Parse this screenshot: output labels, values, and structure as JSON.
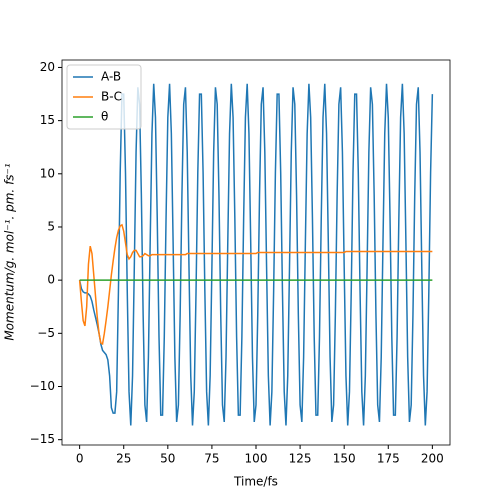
{
  "chart_data": {
    "type": "line",
    "xlabel": "Time/fs",
    "ylabel": "Momentum/g. mol⁻¹. pm. fs⁻¹",
    "xlim": [
      -10,
      210
    ],
    "ylim": [
      -15.5,
      20.7
    ],
    "xticks": [
      0,
      25,
      50,
      75,
      100,
      125,
      150,
      175,
      200
    ],
    "yticks": [
      {
        "value": -15,
        "label": "−15"
      },
      {
        "value": -10,
        "label": "−10"
      },
      {
        "value": -5,
        "label": "−5"
      },
      0,
      5,
      10,
      15,
      20
    ],
    "legend": "upper left",
    "x": [
      0,
      1,
      2,
      3,
      4,
      5,
      6,
      7,
      8,
      9,
      10,
      11,
      12,
      13,
      14,
      15,
      16,
      17,
      18,
      19,
      20,
      21,
      22,
      23,
      24,
      25,
      26,
      27,
      28,
      29,
      30,
      31,
      32,
      33,
      34,
      35,
      36,
      37,
      38,
      39,
      40,
      41,
      42,
      43,
      44,
      45,
      46,
      47,
      48,
      49,
      50,
      51,
      52,
      53,
      54,
      55,
      56,
      57,
      58,
      59,
      60,
      61,
      62,
      63,
      64,
      65,
      66,
      67,
      68,
      69,
      70,
      71,
      72,
      73,
      74,
      75,
      76,
      77,
      78,
      79,
      80,
      81,
      82,
      83,
      84,
      85,
      86,
      87,
      88,
      89,
      90,
      91,
      92,
      93,
      94,
      95,
      96,
      97,
      98,
      99,
      100,
      101,
      102,
      103,
      104,
      105,
      106,
      107,
      108,
      109,
      110,
      111,
      112,
      113,
      114,
      115,
      116,
      117,
      118,
      119,
      120,
      121,
      122,
      123,
      124,
      125,
      126,
      127,
      128,
      129,
      130,
      131,
      132,
      133,
      134,
      135,
      136,
      137,
      138,
      139,
      140,
      141,
      142,
      143,
      144,
      145,
      146,
      147,
      148,
      149,
      150,
      151,
      152,
      153,
      154,
      155,
      156,
      157,
      158,
      159,
      160,
      161,
      162,
      163,
      164,
      165,
      166,
      167,
      168,
      169,
      170,
      171,
      172,
      173,
      174,
      175,
      176,
      177,
      178,
      179,
      180,
      181,
      182,
      183,
      184,
      185,
      186,
      187,
      188,
      189,
      190,
      191,
      192,
      193,
      194,
      195,
      196,
      197,
      198,
      199,
      200
    ],
    "series": [
      {
        "name": "A-B",
        "color": "#1f77b4",
        "values": [
          0,
          -0.8,
          -1.1,
          -1.2,
          -1.2,
          -1.3,
          -1.5,
          -2,
          -2.8,
          -3.5,
          -4.2,
          -5,
          -6,
          -6.6,
          -6.8,
          -7,
          -7.5,
          -9,
          -12,
          -12.5,
          -12.5,
          -10.5,
          -1.02,
          10.12,
          17.49,
          17.49,
          10.12,
          -1.02,
          -10.5,
          -13.66,
          -8.98,
          1.25,
          12.04,
          18.13,
          16.53,
          8.02,
          -3.22,
          -11.73,
          -13.33,
          -7.24,
          3.55,
          13.78,
          18.46,
          15.3,
          5.82,
          -5.32,
          -12.69,
          -12.69,
          -5.32,
          5.82,
          15.3,
          18.46,
          13.78,
          3.55,
          -7.24,
          -13.33,
          -11.73,
          -3.22,
          8.02,
          16.53,
          18.13,
          12.04,
          1.25,
          -8.98,
          -13.66,
          -10.5,
          -1.02,
          10.12,
          17.49,
          17.49,
          10.12,
          -1.02,
          -10.5,
          -13.66,
          -8.98,
          1.25,
          12.04,
          18.13,
          16.53,
          8.02,
          -3.22,
          -11.73,
          -13.33,
          -7.24,
          3.55,
          13.78,
          18.46,
          15.3,
          5.82,
          -5.32,
          -12.69,
          -12.69,
          -5.32,
          5.82,
          15.3,
          18.46,
          13.78,
          3.55,
          -7.24,
          -13.33,
          -11.73,
          -3.22,
          8.02,
          16.53,
          18.13,
          12.04,
          1.25,
          -8.98,
          -13.66,
          -10.5,
          -1.02,
          10.12,
          17.49,
          17.49,
          10.12,
          -1.02,
          -10.5,
          -13.66,
          -8.98,
          1.25,
          12.04,
          18.13,
          16.53,
          8.02,
          -3.22,
          -11.73,
          -13.33,
          -7.24,
          3.55,
          13.78,
          18.46,
          15.3,
          5.82,
          -5.32,
          -12.69,
          -12.69,
          -5.32,
          5.82,
          15.3,
          18.46,
          13.78,
          3.55,
          -7.24,
          -13.33,
          -11.73,
          -3.22,
          8.02,
          16.53,
          18.13,
          12.04,
          1.25,
          -8.98,
          -13.66,
          -10.5,
          -1.02,
          10.12,
          17.49,
          17.49,
          10.12,
          -1.02,
          -10.5,
          -13.66,
          -8.98,
          1.25,
          12.04,
          18.13,
          16.53,
          8.02,
          -3.22,
          -11.73,
          -13.33,
          -7.24,
          3.55,
          13.78,
          18.46,
          15.3,
          5.82,
          -5.32,
          -12.69,
          -12.69,
          -5.32,
          5.82,
          15.3,
          18.46,
          13.78,
          3.55,
          -7.24,
          -13.33,
          -11.73,
          -3.22,
          8.02,
          16.53,
          18.13,
          12.04,
          1.25,
          -8.98,
          -13.66,
          -10.5,
          -1.02,
          10.12,
          17.49
        ]
      },
      {
        "name": "B-C",
        "color": "#ff7f0e",
        "values": [
          0,
          -2,
          -3.8,
          -4.3,
          -2.5,
          1.5,
          3.2,
          2.5,
          0.5,
          -1.5,
          -3.5,
          -5,
          -5.9,
          -6,
          -5,
          -3.8,
          -2.5,
          -1,
          0.5,
          1.8,
          3,
          4,
          4.7,
          5.1,
          5.2,
          4.6,
          3.5,
          2.4,
          2,
          2.2,
          2.6,
          2.8,
          2.8,
          2.5,
          2.2,
          2.2,
          2.3,
          2.5,
          2.4,
          2.3,
          2.3,
          2.4,
          2.4,
          2.4,
          2.4,
          2.4,
          2.4,
          2.4,
          2.4,
          2.4,
          2.4,
          2.4,
          2.4,
          2.4,
          2.4,
          2.4,
          2.4,
          2.4,
          2.4,
          2.4,
          2.4,
          2.5,
          2.5,
          2.5,
          2.5,
          2.5,
          2.5,
          2.5,
          2.5,
          2.5,
          2.5,
          2.5,
          2.5,
          2.5,
          2.5,
          2.5,
          2.5,
          2.5,
          2.5,
          2.5,
          2.5,
          2.5,
          2.5,
          2.5,
          2.5,
          2.5,
          2.5,
          2.5,
          2.5,
          2.5,
          2.5,
          2.5,
          2.5,
          2.5,
          2.5,
          2.5,
          2.5,
          2.5,
          2.5,
          2.5,
          2.5,
          2.6,
          2.6,
          2.6,
          2.6,
          2.6,
          2.6,
          2.6,
          2.6,
          2.6,
          2.6,
          2.6,
          2.6,
          2.6,
          2.6,
          2.6,
          2.6,
          2.6,
          2.6,
          2.6,
          2.6,
          2.6,
          2.6,
          2.6,
          2.6,
          2.6,
          2.6,
          2.6,
          2.6,
          2.6,
          2.6,
          2.6,
          2.6,
          2.6,
          2.6,
          2.6,
          2.6,
          2.6,
          2.6,
          2.6,
          2.6,
          2.6,
          2.6,
          2.6,
          2.6,
          2.6,
          2.6,
          2.6,
          2.6,
          2.6,
          2.6,
          2.7,
          2.7,
          2.7,
          2.7,
          2.7,
          2.7,
          2.7,
          2.7,
          2.7,
          2.7,
          2.7,
          2.7,
          2.7,
          2.7,
          2.7,
          2.7,
          2.7,
          2.7,
          2.7,
          2.7,
          2.7,
          2.7,
          2.7,
          2.7,
          2.7,
          2.7,
          2.7,
          2.7,
          2.7,
          2.7,
          2.7,
          2.7,
          2.7,
          2.7,
          2.7,
          2.7,
          2.7,
          2.7,
          2.7,
          2.7,
          2.7,
          2.7,
          2.7,
          2.7,
          2.7,
          2.7,
          2.7,
          2.7,
          2.7,
          2.7
        ]
      },
      {
        "name": "θ",
        "color": "#2ca02c",
        "values": [
          0,
          0,
          0,
          0,
          0,
          0,
          0,
          0,
          0,
          0,
          0,
          0,
          0,
          0,
          0,
          0,
          0,
          0,
          0,
          0,
          0,
          0,
          0,
          0,
          0,
          0,
          0,
          0,
          0,
          0,
          0,
          0,
          0,
          0,
          0,
          0,
          0,
          0,
          0,
          0,
          0,
          0,
          0,
          0,
          0,
          0,
          0,
          0,
          0,
          0,
          0,
          0,
          0,
          0,
          0,
          0,
          0,
          0,
          0,
          0,
          0,
          0,
          0,
          0,
          0,
          0,
          0,
          0,
          0,
          0,
          0,
          0,
          0,
          0,
          0,
          0,
          0,
          0,
          0,
          0,
          0,
          0,
          0,
          0,
          0,
          0,
          0,
          0,
          0,
          0,
          0,
          0,
          0,
          0,
          0,
          0,
          0,
          0,
          0,
          0,
          0,
          0,
          0,
          0,
          0,
          0,
          0,
          0,
          0,
          0,
          0,
          0,
          0,
          0,
          0,
          0,
          0,
          0,
          0,
          0,
          0,
          0,
          0,
          0,
          0,
          0,
          0,
          0,
          0,
          0,
          0,
          0,
          0,
          0,
          0,
          0,
          0,
          0,
          0,
          0,
          0,
          0,
          0,
          0,
          0,
          0,
          0,
          0,
          0,
          0,
          0,
          0,
          0,
          0,
          0,
          0,
          0,
          0,
          0,
          0,
          0,
          0,
          0,
          0,
          0,
          0,
          0,
          0,
          0,
          0,
          0,
          0,
          0,
          0,
          0,
          0,
          0,
          0,
          0,
          0,
          0,
          0,
          0,
          0,
          0,
          0,
          0,
          0,
          0,
          0,
          0,
          0,
          0,
          0,
          0,
          0,
          0,
          0,
          0,
          0,
          0
        ]
      }
    ]
  }
}
